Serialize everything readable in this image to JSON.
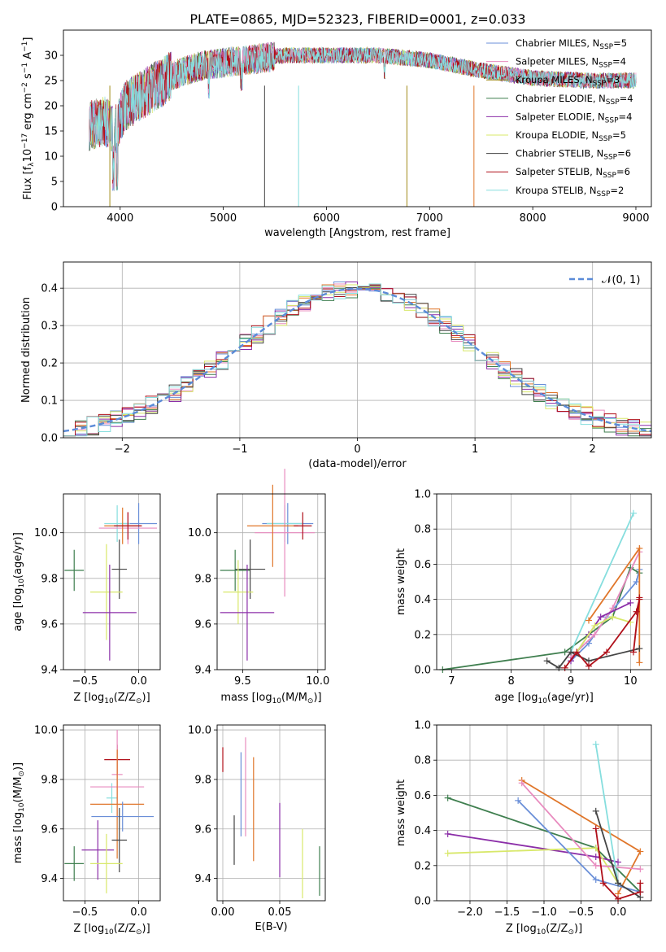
{
  "title": "PLATE=0865, MJD=52323, FIBERID=0001, z=0.033",
  "colors": {
    "blue": "#6a8fd8",
    "pink": "#e88bbf",
    "olive": "#a08a18",
    "green": "#3f7f4f",
    "purple": "#8b2ea8",
    "yellow": "#d8e86a",
    "dark": "#444444",
    "red": "#b0101a",
    "cyan": "#86dede",
    "orange": "#e0762a"
  },
  "chart_data": [
    {
      "type": "line",
      "name": "spectrum",
      "xlabel": "wavelength [Angstrom, rest frame]",
      "ylabel": "Flux [f_λ10^-17 erg cm^-2 s^-1 A^-1]",
      "ylabel_main": "Flux [f",
      "ylabel_sub": "λ",
      "ylabel_mid": "10",
      "ylabel_sup1": "−17",
      "ylabel_mid2": " erg cm",
      "ylabel_sup2": "−2",
      "ylabel_mid3": " s",
      "ylabel_sup3": "−1",
      "ylabel_end": " A",
      "ylabel_sup4": "−1",
      "ylabel_close": "]",
      "xlim": [
        3450,
        9150
      ],
      "ylim": [
        0,
        35
      ],
      "xticks": [
        4000,
        5000,
        6000,
        7000,
        8000,
        9000
      ],
      "yticks": [
        0,
        5,
        10,
        15,
        20,
        25,
        30
      ],
      "continuum_x": [
        3700,
        3850,
        3950,
        4050,
        4200,
        4500,
        4800,
        5200,
        5600,
        6000,
        6500,
        7000,
        7500,
        8000,
        8500,
        8800,
        9000
      ],
      "continuum_y": [
        16,
        17,
        15,
        20,
        22,
        26,
        28,
        29,
        30,
        30,
        30,
        29,
        27,
        25.5,
        25,
        25,
        25
      ],
      "dropouts": [
        {
          "x": 3900,
          "series": "olive"
        },
        {
          "x": 5400,
          "series": "dark"
        },
        {
          "x": 5730,
          "series": "cyan"
        },
        {
          "x": 6780,
          "series": "olive"
        },
        {
          "x": 7430,
          "series": "orange"
        }
      ],
      "legend": [
        {
          "label": "Chabrier MILES, N",
          "sub": "SSP",
          "n": "=5",
          "color": "blue"
        },
        {
          "label": "Salpeter MILES, N",
          "sub": "SSP",
          "n": "=4",
          "color": "pink"
        },
        {
          "label": "Kroupa MILES, N",
          "sub": "SSP",
          "n": "=3",
          "color": "olive"
        },
        {
          "label": "Chabrier ELODIE, N",
          "sub": "SSP",
          "n": "=4",
          "color": "green"
        },
        {
          "label": "Salpeter ELODIE, N",
          "sub": "SSP",
          "n": "=4",
          "color": "purple"
        },
        {
          "label": "Kroupa ELODIE, N",
          "sub": "SSP",
          "n": "=5",
          "color": "yellow"
        },
        {
          "label": "Chabrier STELIB, N",
          "sub": "SSP",
          "n": "=6",
          "color": "dark"
        },
        {
          "label": "Salpeter STELIB, N",
          "sub": "SSP",
          "n": "=6",
          "color": "red"
        },
        {
          "label": "Kroupa STELIB, N",
          "sub": "SSP",
          "n": "=2",
          "color": "cyan"
        }
      ]
    },
    {
      "type": "histogram",
      "name": "residuals",
      "xlabel": "(data-model)/error",
      "ylabel": "Normed distribution",
      "xlim": [
        -2.5,
        2.5
      ],
      "ylim": [
        0,
        0.47
      ],
      "xticks": [
        -2,
        -1,
        0,
        1,
        2
      ],
      "yticks": [
        0.0,
        0.1,
        0.2,
        0.3,
        0.4
      ],
      "grid": true,
      "bin_width": 0.1,
      "legend": {
        "label": "𝒩(0, 1)",
        "placement": "top-right",
        "color": "#5b8bd8"
      }
    },
    {
      "type": "scatter",
      "name": "age-vs-Z",
      "xlabel": "Z [log10(Z/Z⊙)]",
      "ylabel": "age  [log10(age/yr)]",
      "xlim": [
        -0.7,
        0.2
      ],
      "ylim": [
        9.4,
        10.17
      ],
      "xticks": [
        -0.5,
        0.0
      ],
      "yticks": [
        9.4,
        9.6,
        9.8,
        10.0
      ],
      "grid": true,
      "points": [
        {
          "x": 0.0,
          "y": 10.04,
          "xerr": 0.17,
          "yerr": 0.09,
          "color": "blue"
        },
        {
          "x": -0.2,
          "y": 10.04,
          "xerr": 0.12,
          "yerr": 0.08,
          "color": "cyan"
        },
        {
          "x": -0.1,
          "y": 10.02,
          "xerr": 0.27,
          "yerr": 0.07,
          "color": "pink"
        },
        {
          "x": -0.15,
          "y": 10.03,
          "xerr": 0.17,
          "yerr": 0.08,
          "color": "orange"
        },
        {
          "x": -0.1,
          "y": 10.03,
          "xerr": 0.13,
          "yerr": 0.06,
          "color": "red"
        },
        {
          "x": -0.6,
          "y": 9.835,
          "xerr": 0.09,
          "yerr": 0.09,
          "color": "green"
        },
        {
          "x": -0.18,
          "y": 9.84,
          "xerr": 0.07,
          "yerr": 0.13,
          "color": "dark"
        },
        {
          "x": -0.3,
          "y": 9.74,
          "xerr": 0.15,
          "yerr": 0.21,
          "color": "yellow"
        },
        {
          "x": -0.27,
          "y": 9.65,
          "xerr": 0.25,
          "yerr": 0.21,
          "color": "purple"
        }
      ]
    },
    {
      "type": "scatter",
      "name": "age-vs-mass",
      "xlabel": "mass [log10(M/M⊙)]",
      "ylabel": "",
      "xlim": [
        9.33,
        10.05
      ],
      "ylim": [
        9.4,
        10.17
      ],
      "xticks": [
        9.5,
        10.0
      ],
      "yticks": [
        9.4,
        9.6,
        9.8,
        10.0
      ],
      "grid": true,
      "points": [
        {
          "x": 9.8,
          "y": 10.04,
          "xerr": 0.17,
          "yerr": 0.09,
          "color": "blue"
        },
        {
          "x": 9.78,
          "y": 10.04,
          "xerr": 0.12,
          "yerr": 0.08,
          "color": "cyan"
        },
        {
          "x": 9.78,
          "y": 10.0,
          "xerr": 0.2,
          "yerr": 0.28,
          "color": "pink"
        },
        {
          "x": 9.7,
          "y": 10.03,
          "xerr": 0.17,
          "yerr": 0.18,
          "color": "orange"
        },
        {
          "x": 9.9,
          "y": 10.03,
          "xerr": 0.06,
          "yerr": 0.06,
          "color": "red"
        },
        {
          "x": 9.45,
          "y": 9.835,
          "xerr": 0.1,
          "yerr": 0.09,
          "color": "green"
        },
        {
          "x": 9.55,
          "y": 9.84,
          "xerr": 0.1,
          "yerr": 0.13,
          "color": "dark"
        },
        {
          "x": 9.47,
          "y": 9.74,
          "xerr": 0.1,
          "yerr": 0.14,
          "color": "yellow"
        },
        {
          "x": 9.53,
          "y": 9.65,
          "xerr": 0.18,
          "yerr": 0.21,
          "color": "purple"
        }
      ]
    },
    {
      "type": "line",
      "name": "weight-vs-age",
      "xlabel": "age  [log10(age/yr)]",
      "ylabel": "mass weight",
      "xlim": [
        6.75,
        10.35
      ],
      "ylim": [
        0,
        1.0
      ],
      "xticks": [
        7,
        8,
        9,
        10
      ],
      "yticks": [
        0.0,
        0.2,
        0.4,
        0.6,
        0.8,
        1.0
      ],
      "grid": true,
      "series": [
        {
          "color": "green",
          "x": [
            6.85,
            8.9,
            9.3,
            9.7,
            10.0,
            10.15
          ],
          "y": [
            0.0,
            0.1,
            0.2,
            0.3,
            0.58,
            0.55
          ]
        },
        {
          "color": "blue",
          "x": [
            9.0,
            9.3,
            9.6,
            10.1,
            10.15
          ],
          "y": [
            0.05,
            0.15,
            0.3,
            0.5,
            0.57
          ]
        },
        {
          "color": "cyan",
          "x": [
            9.0,
            10.05
          ],
          "y": [
            0.1,
            0.89
          ]
        },
        {
          "color": "pink",
          "x": [
            9.0,
            9.4,
            9.7,
            10.15
          ],
          "y": [
            0.07,
            0.2,
            0.35,
            0.67
          ]
        },
        {
          "color": "orange",
          "x": [
            9.3,
            10.15,
            10.15
          ],
          "y": [
            0.28,
            0.69,
            0.04
          ]
        },
        {
          "color": "purple",
          "x": [
            9.0,
            9.3,
            9.5,
            10.0
          ],
          "y": [
            0.05,
            0.2,
            0.3,
            0.38
          ]
        },
        {
          "color": "yellow",
          "x": [
            9.1,
            9.4,
            9.7,
            10.0
          ],
          "y": [
            0.1,
            0.25,
            0.3,
            0.27
          ]
        },
        {
          "color": "dark",
          "x": [
            8.6,
            8.8,
            9.0,
            9.3,
            10.15
          ],
          "y": [
            0.05,
            0.01,
            0.1,
            0.05,
            0.12
          ]
        },
        {
          "color": "red",
          "x": [
            8.9,
            9.1,
            9.3,
            9.6,
            10.1,
            10.15,
            10.05,
            10.15
          ],
          "y": [
            0.01,
            0.1,
            0.02,
            0.1,
            0.33,
            0.4,
            0.1,
            0.41
          ]
        }
      ]
    },
    {
      "type": "scatter",
      "name": "mass-vs-Z",
      "xlabel": "Z [log10(Z/Z⊙)]",
      "ylabel": "mass [log10(M/M⊙)]",
      "xlim": [
        -0.7,
        0.2
      ],
      "ylim": [
        9.31,
        10.02
      ],
      "xticks": [
        -0.5,
        0.0
      ],
      "yticks": [
        9.4,
        9.6,
        9.8,
        10.0
      ],
      "grid": true,
      "points": [
        {
          "x": -0.2,
          "y": 9.88,
          "xerr": 0.12,
          "yerr": 0.06,
          "color": "red"
        },
        {
          "x": -0.2,
          "y": 9.82,
          "xerr": 0.05,
          "yerr": 0.18,
          "color": "pink"
        },
        {
          "x": -0.25,
          "y": 9.725,
          "xerr": 0.05,
          "yerr": 0.06,
          "color": "cyan"
        },
        {
          "x": -0.2,
          "y": 9.77,
          "xerr": 0.25,
          "yerr": 0.07,
          "color": "pink"
        },
        {
          "x": -0.2,
          "y": 9.7,
          "xerr": 0.25,
          "yerr": 0.22,
          "color": "orange"
        },
        {
          "x": -0.15,
          "y": 9.65,
          "xerr": 0.29,
          "yerr": 0.06,
          "color": "blue"
        },
        {
          "x": -0.18,
          "y": 9.555,
          "xerr": 0.07,
          "yerr": 0.13,
          "color": "dark"
        },
        {
          "x": -0.38,
          "y": 9.515,
          "xerr": 0.15,
          "yerr": 0.12,
          "color": "purple"
        },
        {
          "x": -0.3,
          "y": 9.46,
          "xerr": 0.15,
          "yerr": 0.12,
          "color": "yellow"
        },
        {
          "x": -0.6,
          "y": 9.46,
          "xerr": 0.09,
          "yerr": 0.07,
          "color": "green"
        }
      ]
    },
    {
      "type": "scatter",
      "name": "mass-vs-EBV",
      "xlabel": "E(B-V)",
      "ylabel": "",
      "xlim": [
        -0.005,
        0.09
      ],
      "ylim": [
        9.31,
        10.02
      ],
      "xticks": [
        0.0,
        0.05
      ],
      "yticks": [
        9.4,
        9.6,
        9.8,
        10.0
      ],
      "grid": true,
      "points": [
        {
          "x": 0.0,
          "y": 9.88,
          "yerr": 0.05,
          "color": "red"
        },
        {
          "x": 0.01,
          "y": 9.555,
          "yerr": 0.1,
          "color": "dark"
        },
        {
          "x": 0.016,
          "y": 9.74,
          "yerr": 0.17,
          "color": "blue"
        },
        {
          "x": 0.02,
          "y": 9.77,
          "yerr": 0.2,
          "color": "pink"
        },
        {
          "x": 0.027,
          "y": 9.68,
          "yerr": 0.21,
          "color": "orange"
        },
        {
          "x": 0.05,
          "y": 9.555,
          "yerr": 0.15,
          "color": "purple"
        },
        {
          "x": 0.07,
          "y": 9.46,
          "yerr": 0.14,
          "color": "yellow"
        },
        {
          "x": 0.085,
          "y": 9.43,
          "yerr": 0.1,
          "color": "green"
        }
      ]
    },
    {
      "type": "line",
      "name": "weight-vs-Z",
      "xlabel": "Z [log10(Z/Z⊙)]",
      "ylabel": "mass weight",
      "xlim": [
        -2.45,
        0.45
      ],
      "ylim": [
        0,
        1.0
      ],
      "xticks": [
        -2.0,
        -1.5,
        -1.0,
        -0.5,
        0.0
      ],
      "yticks": [
        0.0,
        0.2,
        0.4,
        0.6,
        0.8,
        1.0
      ],
      "grid": true,
      "series": [
        {
          "color": "green",
          "x": [
            -2.3,
            -0.3,
            0.3
          ],
          "y": [
            0.585,
            0.3,
            0.05
          ]
        },
        {
          "color": "purple",
          "x": [
            -2.3,
            -0.3,
            0.0
          ],
          "y": [
            0.38,
            0.25,
            0.22
          ]
        },
        {
          "color": "yellow",
          "x": [
            -2.3,
            -0.3,
            0.0
          ],
          "y": [
            0.27,
            0.3,
            0.1
          ]
        },
        {
          "color": "orange",
          "x": [
            -1.3,
            0.3,
            0.0
          ],
          "y": [
            0.685,
            0.28,
            0.04
          ]
        },
        {
          "color": "pink",
          "x": [
            -1.3,
            -0.3,
            0.3
          ],
          "y": [
            0.67,
            0.2,
            0.18
          ]
        },
        {
          "color": "blue",
          "x": [
            -1.35,
            -0.3,
            0.3
          ],
          "y": [
            0.57,
            0.12,
            0.05
          ]
        },
        {
          "color": "cyan",
          "x": [
            -0.3,
            0.0
          ],
          "y": [
            0.89,
            0.1
          ]
        },
        {
          "color": "dark",
          "x": [
            -0.3,
            0.0,
            0.3
          ],
          "y": [
            0.51,
            0.1,
            0.02
          ]
        },
        {
          "color": "red",
          "x": [
            -0.3,
            -0.2,
            0.0,
            0.3,
            0.3
          ],
          "y": [
            0.41,
            0.1,
            0.01,
            0.05,
            0.1
          ]
        }
      ]
    }
  ]
}
